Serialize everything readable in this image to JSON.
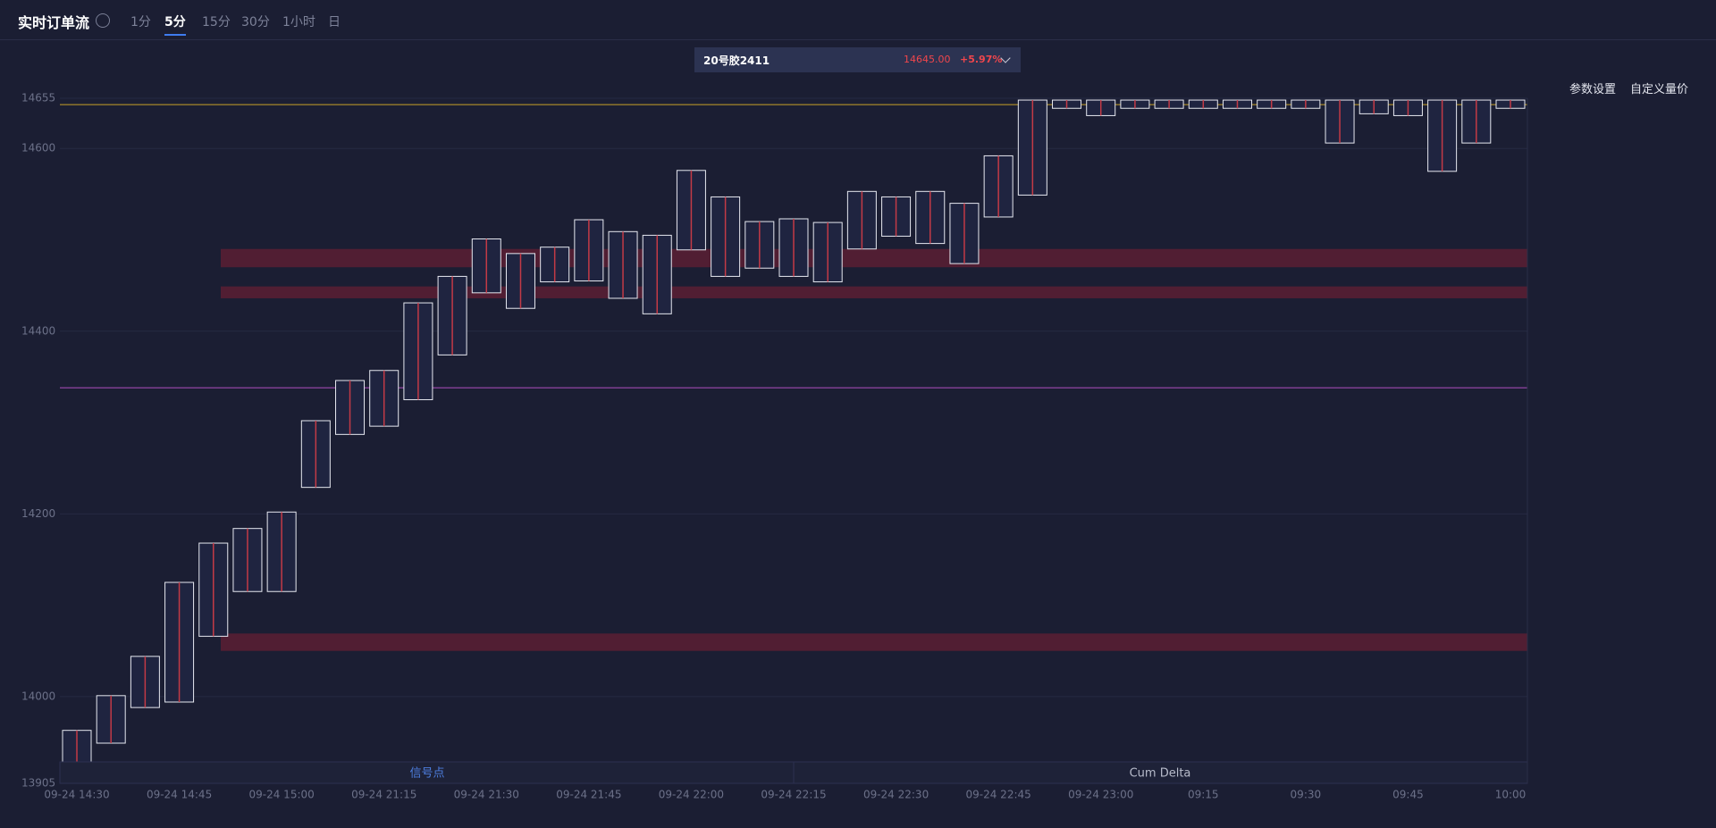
{
  "header": {
    "title": "实时订单流",
    "tabs": [
      "1分",
      "5分",
      "15分",
      "30分",
      "1小时",
      "日"
    ],
    "active_tab": 1
  },
  "instrument": {
    "name": "20号胶2411",
    "price": "14645.00",
    "change": "+5.97%"
  },
  "toolbar": [
    "参数设置",
    "自定义量价"
  ],
  "chart_data": {
    "type": "candlestick",
    "categories": [
      "09-24 14:30",
      null,
      null,
      "09-24 14:45",
      null,
      null,
      "09-24 15:00",
      null,
      null,
      "09-24 21:15",
      null,
      null,
      "09-24 21:30",
      null,
      null,
      "09-24 21:45",
      null,
      null,
      "09-24 22:00",
      null,
      null,
      "09-24 22:15",
      null,
      null,
      "09-24 22:30",
      null,
      null,
      "09-24 22:45",
      null,
      null,
      "09-24 23:00",
      null,
      null,
      "09:15",
      null,
      null,
      "09:30",
      null,
      null,
      "09:45",
      null,
      null,
      "10:00"
    ],
    "high": [
      13963,
      14001,
      14044,
      14125,
      14168,
      14184,
      14202,
      14302,
      14346,
      14357,
      14431,
      14460,
      14501,
      14485,
      14492,
      14522,
      14509,
      14505,
      14576,
      14547,
      14520,
      14523,
      14519,
      14553,
      14547,
      14553,
      14540,
      14592,
      14653,
      14653,
      14653,
      14653,
      14653,
      14653,
      14653,
      14653,
      14653,
      14653,
      14653,
      14653,
      14653,
      14653,
      14653
    ],
    "low": [
      13925,
      13949,
      13988,
      13994,
      14066,
      14115,
      14115,
      14229,
      14287,
      14296,
      14325,
      14374,
      14442,
      14425,
      14454,
      14455,
      14436,
      14419,
      14489,
      14460,
      14469,
      14460,
      14454,
      14490,
      14504,
      14496,
      14474,
      14525,
      14549,
      14644,
      14636,
      14644,
      14644,
      14644,
      14644,
      14644,
      14644,
      14606,
      14638,
      14636,
      14575,
      14606,
      14644
    ],
    "ylim": [
      13905,
      14655
    ],
    "yticks": [
      13905,
      14000,
      14200,
      14400,
      14600,
      14655
    ],
    "bands": [
      [
        14470,
        14490
      ],
      [
        14436,
        14449
      ],
      [
        14050,
        14069
      ]
    ],
    "lines": [
      {
        "value": 14648,
        "color": "#c9a227"
      },
      {
        "value": 14338,
        "color": "#b04fc0"
      }
    ],
    "panels": [
      "信号点",
      "Cum Delta"
    ],
    "box_color": "#e6e8f0",
    "band_color": "#5b1e34",
    "grid": true
  }
}
